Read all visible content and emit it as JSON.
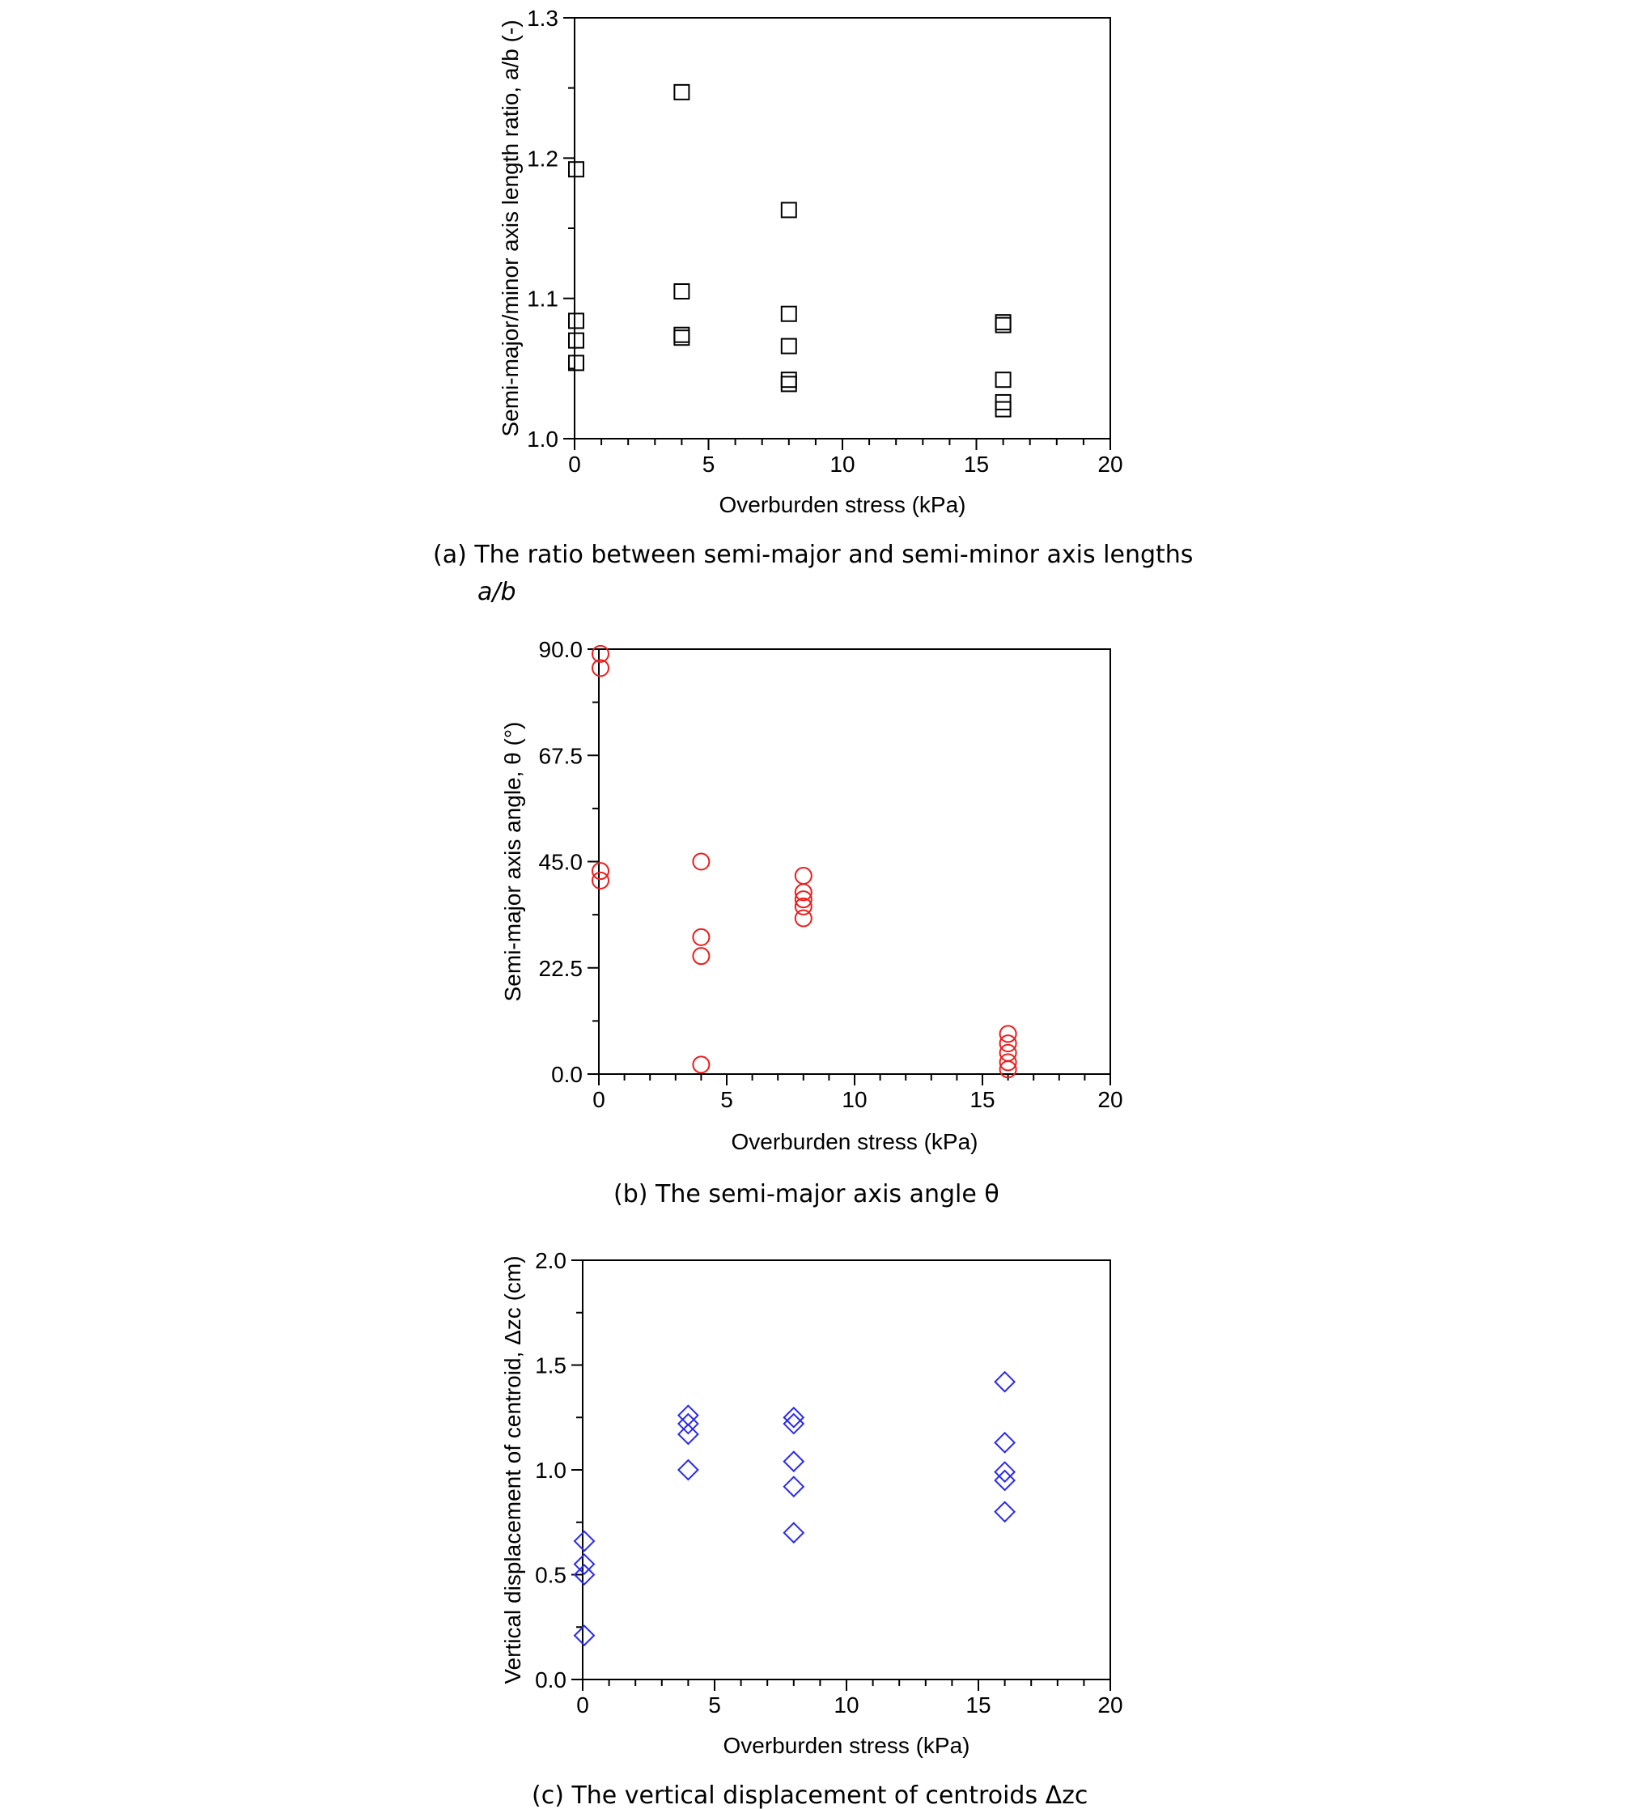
{
  "chart_data": [
    {
      "type": "scatter",
      "xlabel": "Overburden stress (kPa)",
      "ylabel": "Semi-major/minor axis length ratio, a/b (-)",
      "xlim": [
        0,
        20
      ],
      "ylim": [
        1.0,
        1.3
      ],
      "x_ticks": [
        "0",
        "5",
        "10",
        "15",
        "20"
      ],
      "y_ticks": [
        "1.0",
        "1.1",
        "1.2",
        "1.3"
      ],
      "marker": "square",
      "color": "#000000",
      "caption_line1": "(a) The ratio between semi-major and semi-minor axis lengths",
      "caption_line2": "a/b",
      "points": [
        {
          "x": 0,
          "y": 1.192
        },
        {
          "x": 0,
          "y": 1.084
        },
        {
          "x": 0,
          "y": 1.07
        },
        {
          "x": 0,
          "y": 1.054
        },
        {
          "x": 4,
          "y": 1.247
        },
        {
          "x": 4,
          "y": 1.105
        },
        {
          "x": 4,
          "y": 1.074
        },
        {
          "x": 4,
          "y": 1.072
        },
        {
          "x": 8,
          "y": 1.163
        },
        {
          "x": 8,
          "y": 1.089
        },
        {
          "x": 8,
          "y": 1.066
        },
        {
          "x": 8,
          "y": 1.042
        },
        {
          "x": 8,
          "y": 1.039
        },
        {
          "x": 16,
          "y": 1.083
        },
        {
          "x": 16,
          "y": 1.081
        },
        {
          "x": 16,
          "y": 1.042
        },
        {
          "x": 16,
          "y": 1.026
        },
        {
          "x": 16,
          "y": 1.021
        }
      ]
    },
    {
      "type": "scatter",
      "xlabel": "Overburden stress (kPa)",
      "ylabel": "Semi-major axis angle, θ (°)",
      "xlim": [
        0,
        20
      ],
      "ylim": [
        0.0,
        90.0
      ],
      "x_ticks": [
        "0",
        "5",
        "10",
        "15",
        "20"
      ],
      "y_ticks": [
        "0.0",
        "22.5",
        "45.0",
        "67.5",
        "90.0"
      ],
      "marker": "circle",
      "color": "#ee1c1c",
      "caption_line1": "(b) The semi-major axis angle θ",
      "points": [
        {
          "x": 0,
          "y": 89.0
        },
        {
          "x": 0,
          "y": 86.0
        },
        {
          "x": 0,
          "y": 43.0
        },
        {
          "x": 0,
          "y": 41.0
        },
        {
          "x": 4,
          "y": 45.0
        },
        {
          "x": 4,
          "y": 29.0
        },
        {
          "x": 4,
          "y": 25.0
        },
        {
          "x": 4,
          "y": 2.0
        },
        {
          "x": 8,
          "y": 42.0
        },
        {
          "x": 8,
          "y": 38.5
        },
        {
          "x": 8,
          "y": 37.0
        },
        {
          "x": 8,
          "y": 35.5
        },
        {
          "x": 8,
          "y": 33.0
        },
        {
          "x": 16,
          "y": 8.5
        },
        {
          "x": 16,
          "y": 6.5
        },
        {
          "x": 16,
          "y": 4.5
        },
        {
          "x": 16,
          "y": 2.5
        },
        {
          "x": 16,
          "y": 1.0
        }
      ]
    },
    {
      "type": "scatter",
      "xlabel": "Overburden stress (kPa)",
      "ylabel": "Vertical displacement of centroid, Δzc (cm)",
      "xlim": [
        0,
        20
      ],
      "ylim": [
        0.0,
        2.0
      ],
      "x_ticks": [
        "0",
        "5",
        "10",
        "15",
        "20"
      ],
      "y_ticks": [
        "0.0",
        "0.5",
        "1.0",
        "1.5",
        "2.0"
      ],
      "marker": "diamond",
      "color": "#2a2aee",
      "caption_line1": "(c) The vertical displacement of centroids Δzc",
      "points": [
        {
          "x": 0,
          "y": 0.66
        },
        {
          "x": 0,
          "y": 0.55
        },
        {
          "x": 0,
          "y": 0.5
        },
        {
          "x": 0,
          "y": 0.21
        },
        {
          "x": 4,
          "y": 1.26
        },
        {
          "x": 4,
          "y": 1.22
        },
        {
          "x": 4,
          "y": 1.17
        },
        {
          "x": 4,
          "y": 1.0
        },
        {
          "x": 8,
          "y": 1.25
        },
        {
          "x": 8,
          "y": 1.22
        },
        {
          "x": 8,
          "y": 1.04
        },
        {
          "x": 8,
          "y": 0.92
        },
        {
          "x": 8,
          "y": 0.7
        },
        {
          "x": 16,
          "y": 1.42
        },
        {
          "x": 16,
          "y": 1.13
        },
        {
          "x": 16,
          "y": 0.99
        },
        {
          "x": 16,
          "y": 0.95
        },
        {
          "x": 16,
          "y": 0.8
        }
      ]
    }
  ]
}
